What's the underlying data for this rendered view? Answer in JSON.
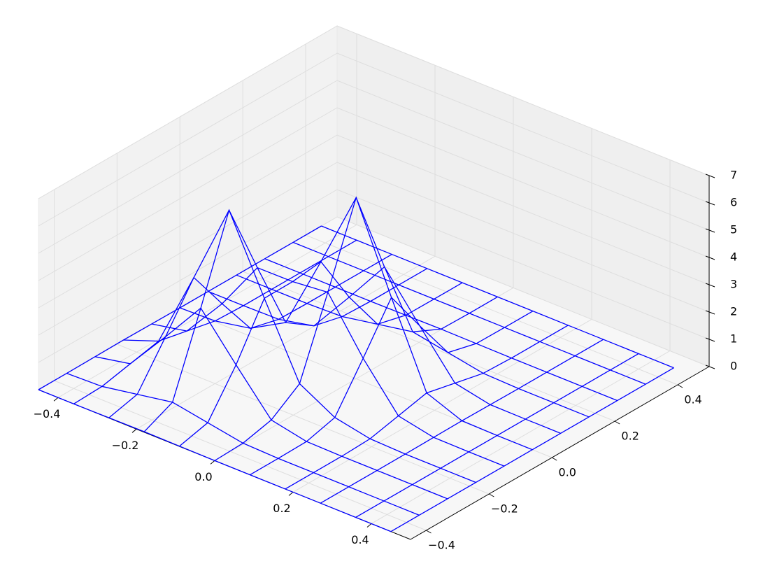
{
  "chart_data": {
    "type": "wireframe",
    "color": "#0000ff",
    "grid": true,
    "xlim": [
      -0.45,
      0.5
    ],
    "ylim": [
      -0.45,
      0.5
    ],
    "zlim": [
      0,
      7
    ],
    "xticks": [
      {
        "value": -0.4,
        "label": "−0.4"
      },
      {
        "value": -0.2,
        "label": "−0.2"
      },
      {
        "value": 0,
        "label": "0.0"
      },
      {
        "value": 0.2,
        "label": "0.2"
      },
      {
        "value": 0.4,
        "label": "0.4"
      }
    ],
    "yticks": [
      {
        "value": -0.4,
        "label": "−0.4"
      },
      {
        "value": -0.2,
        "label": "−0.2"
      },
      {
        "value": 0,
        "label": "0.0"
      },
      {
        "value": 0.2,
        "label": "0.2"
      },
      {
        "value": 0.4,
        "label": "0.4"
      }
    ],
    "zticks": [
      0,
      1,
      2,
      3,
      4,
      5,
      6,
      7
    ],
    "x": [
      -0.45,
      -0.36,
      -0.27,
      -0.18,
      -0.09,
      0,
      0.09,
      0.18,
      0.27,
      0.36,
      0.45
    ],
    "y": [
      -0.45,
      -0.36,
      -0.27,
      -0.18,
      -0.09,
      0,
      0.09,
      0.18,
      0.27,
      0.36,
      0.45
    ],
    "z": [
      [
        0,
        0,
        0.01,
        0.02,
        0.01,
        0,
        0,
        0,
        0,
        0,
        0
      ],
      [
        0,
        0.04,
        0.27,
        0.5,
        0.27,
        0.04,
        0,
        0,
        0,
        0,
        0
      ],
      [
        0.01,
        0.27,
        1.78,
        3.35,
        1.79,
        0.29,
        0.02,
        0,
        0,
        0,
        0
      ],
      [
        0.02,
        0.5,
        3.35,
        6.34,
        3.63,
        1.02,
        0.3,
        0.04,
        0,
        0,
        0
      ],
      [
        0.01,
        0.27,
        1.79,
        3.63,
        3.64,
        3.77,
        1.87,
        0.28,
        0.01,
        0,
        0
      ],
      [
        0,
        0.04,
        0.29,
        1.02,
        3.77,
        6.64,
        3.5,
        0.52,
        0.02,
        0,
        0
      ],
      [
        0,
        0,
        0.02,
        0.3,
        1.87,
        3.5,
        1.86,
        0.28,
        0.01,
        0,
        0
      ],
      [
        0,
        0,
        0,
        0.04,
        0.28,
        0.52,
        0.28,
        0.04,
        0,
        0,
        0
      ],
      [
        0,
        0,
        0,
        0,
        0.01,
        0.02,
        0.01,
        0,
        0,
        0,
        0
      ],
      [
        0,
        0,
        0,
        0,
        0,
        0,
        0,
        0,
        0,
        0,
        0
      ],
      [
        0,
        0,
        0,
        0,
        0,
        0,
        0,
        0,
        0,
        0,
        0
      ]
    ]
  }
}
